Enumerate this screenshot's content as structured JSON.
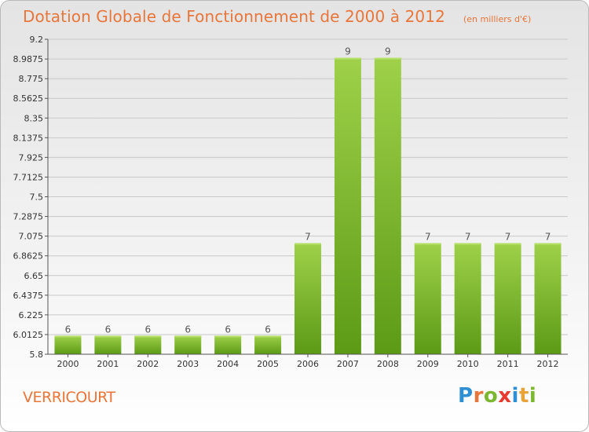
{
  "title": "Dotation Globale de Fonctionnement de 2000 à 2012",
  "subtitle": "(en milliers d'€)",
  "commune": "VERRICOURT",
  "brand": {
    "text": "Proxiti",
    "letters": [
      {
        "char": "P",
        "color": "#2e8fd4"
      },
      {
        "char": "r",
        "color": "#e8763a"
      },
      {
        "char": "o",
        "color": "#7cb82f"
      },
      {
        "char": "x",
        "color": "#e83a2e"
      },
      {
        "char": "i",
        "color": "#2e8fd4"
      },
      {
        "char": "t",
        "color": "#e8a23a"
      },
      {
        "char": "i",
        "color": "#7cb82f"
      }
    ]
  },
  "colors": {
    "title": "#e8763a",
    "bar_top": "#9fd14a",
    "bar_bottom": "#5c9a16",
    "grid": "#c8c8c8",
    "axis_text": "#333333"
  },
  "chart_data": {
    "type": "bar",
    "categories": [
      "2000",
      "2001",
      "2002",
      "2003",
      "2004",
      "2005",
      "2006",
      "2007",
      "2008",
      "2009",
      "2010",
      "2011",
      "2012"
    ],
    "values": [
      6,
      6,
      6,
      6,
      6,
      6,
      7,
      9,
      9,
      7,
      7,
      7,
      7
    ],
    "data_labels": [
      "6",
      "6",
      "6",
      "6",
      "6",
      "6",
      "7",
      "9",
      "9",
      "7",
      "7",
      "7",
      "7"
    ],
    "ylim": [
      5.8,
      9.2
    ],
    "yticks": [
      "5.8",
      "6.0125",
      "6.225",
      "6.4375",
      "6.65",
      "6.8625",
      "7.075",
      "7.2875",
      "7.5",
      "7.7125",
      "7.925",
      "8.1375",
      "8.35",
      "8.5625",
      "8.775",
      "8.9875",
      "9.2"
    ],
    "grid": true,
    "xlabel": "",
    "ylabel": ""
  }
}
